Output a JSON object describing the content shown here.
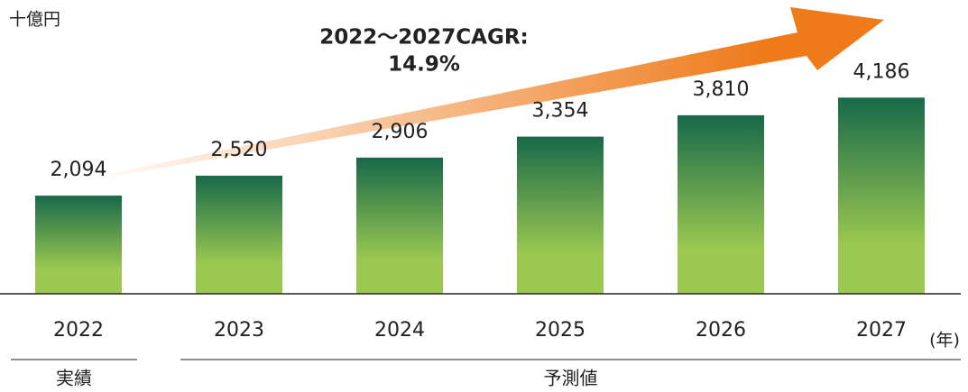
{
  "chart_data": {
    "type": "bar",
    "y_unit": "十億円",
    "x_unit": "(年)",
    "annotation": [
      "2022～2027CAGR:",
      "14.9%"
    ],
    "categories": [
      "2022",
      "2023",
      "2024",
      "2025",
      "2026",
      "2027"
    ],
    "values": [
      2094,
      2520,
      2906,
      3354,
      3810,
      4186
    ],
    "value_labels": [
      "2,094",
      "2,520",
      "2,906",
      "3,354",
      "3,810",
      "4,186"
    ],
    "gradient": [
      "#17694a",
      "#9bc850"
    ],
    "arrow_color": "#ee7a1a",
    "ylim": [
      0,
      4500
    ],
    "groups": [
      {
        "label": "実績",
        "categories": [
          0,
          0
        ]
      },
      {
        "label": "予測値",
        "categories": [
          1,
          5
        ]
      }
    ]
  }
}
